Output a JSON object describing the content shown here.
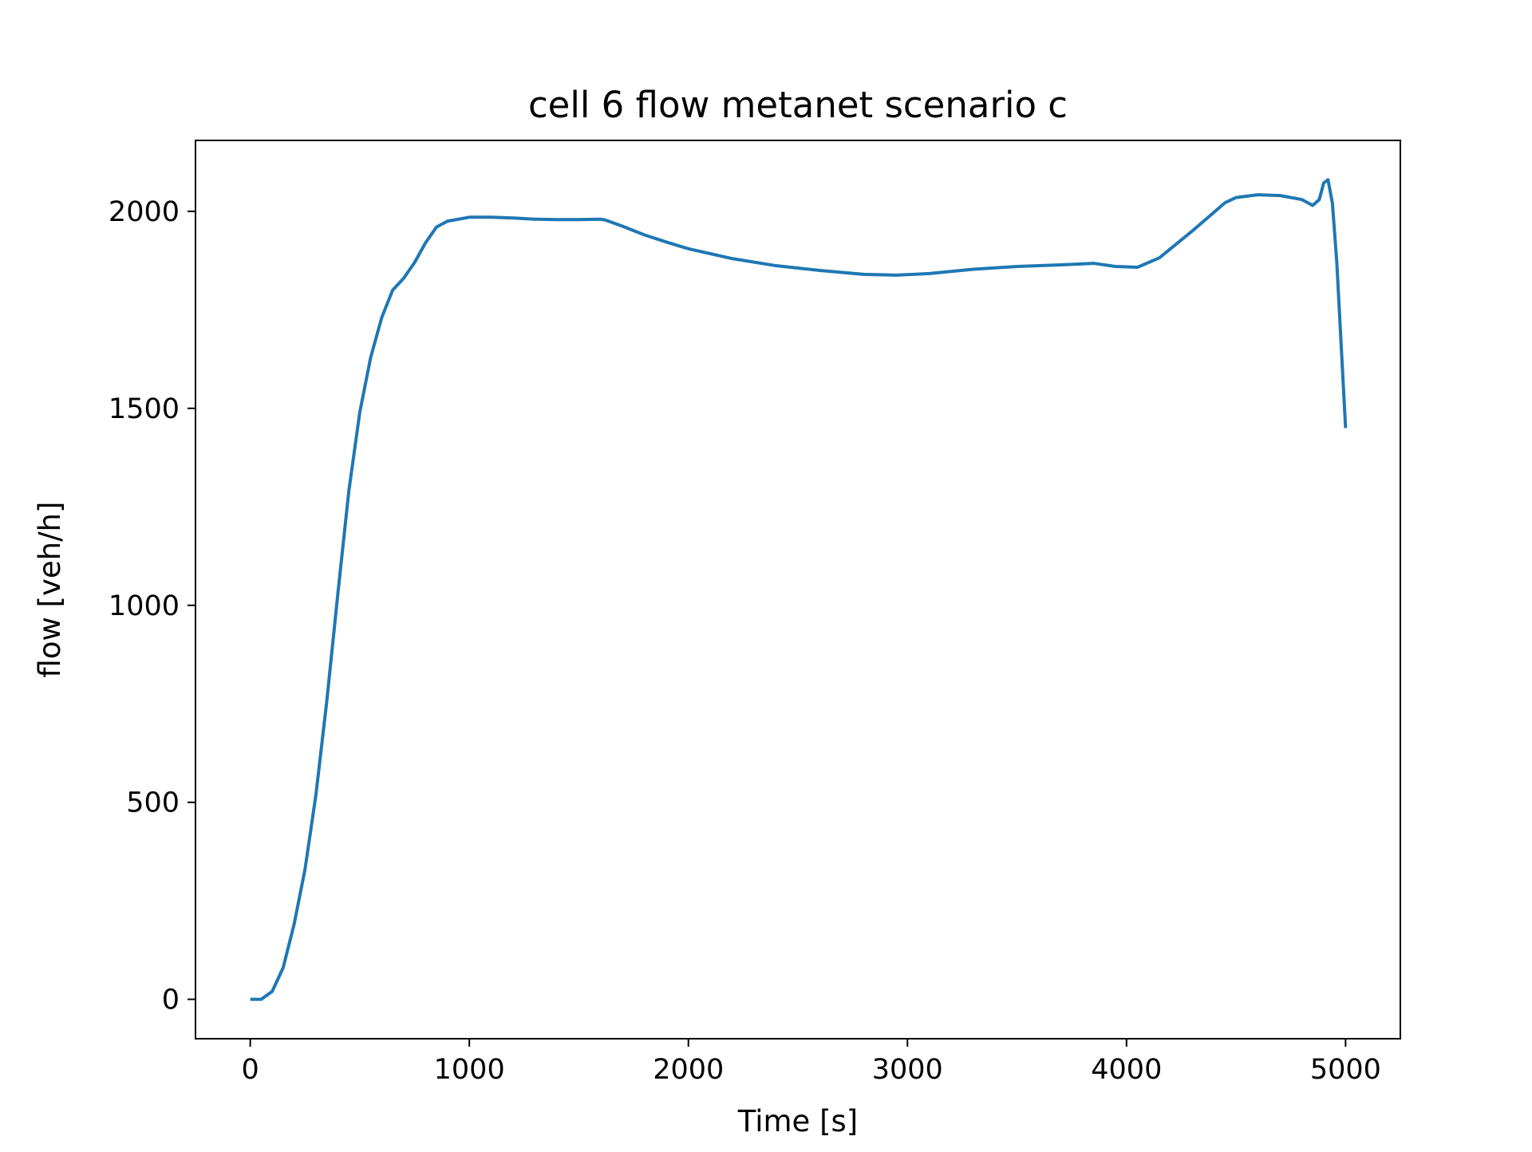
{
  "chart_data": {
    "type": "line",
    "title": "cell 6 flow metanet scenario c",
    "xlabel": "Time [s]",
    "ylabel": "flow [veh/h]",
    "xlim": [
      -250,
      5250
    ],
    "ylim": [
      -100,
      2180
    ],
    "xticks": [
      0,
      1000,
      2000,
      3000,
      4000,
      5000
    ],
    "yticks": [
      0,
      500,
      1000,
      1500,
      2000
    ],
    "xtick_labels": [
      "0",
      "1000",
      "2000",
      "3000",
      "4000",
      "5000"
    ],
    "ytick_labels": [
      "0",
      "500",
      "1000",
      "1500",
      "2000"
    ],
    "grid": false,
    "legend": "none",
    "series": [
      {
        "color": "#1f77b4",
        "x": [
          0,
          50,
          100,
          150,
          200,
          250,
          300,
          350,
          400,
          450,
          500,
          550,
          600,
          650,
          700,
          750,
          800,
          850,
          900,
          1000,
          1100,
          1200,
          1300,
          1400,
          1500,
          1600,
          1620,
          1700,
          1800,
          1900,
          2000,
          2200,
          2400,
          2600,
          2800,
          2950,
          3100,
          3300,
          3500,
          3700,
          3850,
          3950,
          4050,
          4150,
          4300,
          4450,
          4500,
          4600,
          4700,
          4800,
          4850,
          4880,
          4900,
          4920,
          4940,
          4960,
          5000
        ],
        "y": [
          0,
          0,
          20,
          80,
          190,
          330,
          520,
          760,
          1030,
          1290,
          1490,
          1630,
          1730,
          1800,
          1830,
          1870,
          1920,
          1960,
          1975,
          1985,
          1985,
          1983,
          1980,
          1979,
          1979,
          1980,
          1978,
          1962,
          1940,
          1922,
          1905,
          1880,
          1862,
          1850,
          1840,
          1838,
          1842,
          1853,
          1860,
          1864,
          1868,
          1860,
          1858,
          1882,
          1950,
          2022,
          2035,
          2042,
          2040,
          2030,
          2015,
          2030,
          2072,
          2080,
          2020,
          1870,
          1450
        ]
      }
    ]
  }
}
